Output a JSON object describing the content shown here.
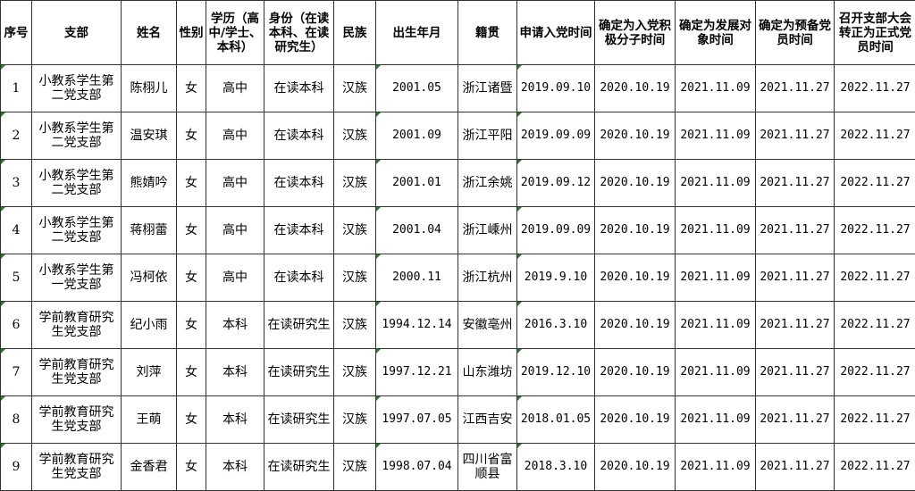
{
  "headers": [
    "序号",
    "支部",
    "姓名",
    "性别",
    "学历（高中/学士、本科）",
    "身份（在读本科、在读研究生）",
    "民族",
    "出生年月",
    "籍贯",
    "申请入党时间",
    "确定为入党积极分子时间",
    "确定为发展对象时间",
    "确定为预备党员时间",
    "召开支部大会转正为正式党员时间"
  ],
  "rows": [
    [
      "1",
      "小教系学生第二党支部",
      "陈栩儿",
      "女",
      "高中",
      "在读本科",
      "汉族",
      "2001.05",
      "浙江诸暨",
      "2019.09.10",
      "2020.10.19",
      "2021.11.09",
      "2021.11.27",
      "2022.11.27"
    ],
    [
      "2",
      "小教系学生第二党支部",
      "温安琪",
      "女",
      "高中",
      "在读本科",
      "汉族",
      "2001.09",
      "浙江平阳",
      "2019.09.09",
      "2020.10.19",
      "2021.11.09",
      "2021.11.27",
      "2022.11.27"
    ],
    [
      "3",
      "小教系学生第二党支部",
      "熊婧吟",
      "女",
      "高中",
      "在读本科",
      "汉族",
      "2001.01",
      "浙江余姚",
      "2019.09.12",
      "2020.10.19",
      "2021.11.09",
      "2021.11.27",
      "2022.11.27"
    ],
    [
      "4",
      "小教系学生第二党支部",
      "蒋栩蕾",
      "女",
      "高中",
      "在读本科",
      "汉族",
      "2001.04",
      "浙江嵊州",
      "2019.09.09",
      "2020.10.19",
      "2021.11.09",
      "2021.11.27",
      "2022.11.27"
    ],
    [
      "5",
      "小教系学生第一党支部",
      "冯柯依",
      "女",
      "高中",
      "在读本科",
      "汉族",
      "2000.11",
      "浙江杭州",
      "2019.9.10",
      "2020.10.19",
      "2021.11.09",
      "2021.11.27",
      "2022.11.27"
    ],
    [
      "6",
      "学前教育研究生党支部",
      "纪小雨",
      "女",
      "本科",
      "在读研究生",
      "汉族",
      "1994.12.14",
      "安徽亳州",
      "2016.3.10",
      "2020.10.19",
      "2021.11.09",
      "2021.11.27",
      "2022.11.27"
    ],
    [
      "7",
      "学前教育研究生党支部",
      "刘萍",
      "女",
      "本科",
      "在读研究生",
      "汉族",
      "1997.12.21",
      "山东潍坊",
      "2019.12.10",
      "2020.10.19",
      "2021.11.09",
      "2021.11.27",
      "2022.11.27"
    ],
    [
      "8",
      "学前教育研究生党支部",
      "王萌",
      "女",
      "本科",
      "在读研究生",
      "汉族",
      "1997.07.05",
      "江西吉安",
      "2018.01.05",
      "2020.10.19",
      "2021.11.09",
      "2021.11.27",
      "2022.11.27"
    ],
    [
      "9",
      "学前教育研究生党支部",
      "金香君",
      "女",
      "本科",
      "在读研究生",
      "汉族",
      "1998.07.04",
      "四川省富顺县",
      "2018.3.10",
      "2020.10.19",
      "2021.11.09",
      "2021.11.27",
      "2022.11.27"
    ]
  ]
}
